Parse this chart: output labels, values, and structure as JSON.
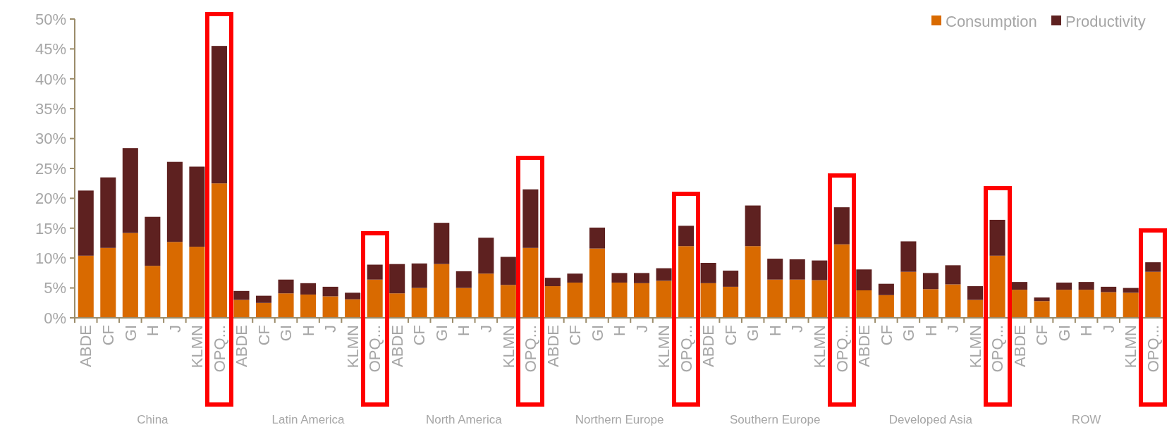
{
  "chart_data": {
    "type": "bar",
    "stacked": true,
    "categories": [
      "ABDE",
      "CF",
      "GI",
      "H",
      "J",
      "KLMN",
      "OPQ...",
      "ABDE",
      "CF",
      "GI",
      "H",
      "J",
      "KLMN",
      "OPQ...",
      "ABDE",
      "CF",
      "GI",
      "H",
      "J",
      "KLMN",
      "OPQ...",
      "ABDE",
      "CF",
      "GI",
      "H",
      "J",
      "KLMN",
      "OPQ...",
      "ABDE",
      "CF",
      "GI",
      "H",
      "J",
      "KLMN",
      "OPQ...",
      "ABDE",
      "CF",
      "GI",
      "H",
      "J",
      "KLMN",
      "OPQ...",
      "ABDE",
      "CF",
      "GI",
      "H",
      "J",
      "KLMN",
      "OPQ..."
    ],
    "series": [
      {
        "name": "Consumption",
        "color": "#d96a00",
        "values": [
          10.4,
          11.7,
          14.2,
          8.7,
          12.7,
          11.9,
          22.5,
          3.0,
          2.5,
          4.1,
          3.9,
          3.6,
          3.1,
          6.4,
          4.1,
          5.0,
          9.0,
          5.0,
          7.4,
          5.5,
          11.7,
          5.3,
          5.9,
          11.6,
          5.9,
          5.8,
          6.2,
          12.0,
          5.8,
          5.2,
          12.0,
          6.4,
          6.4,
          6.3,
          12.3,
          4.6,
          3.8,
          7.7,
          4.8,
          5.6,
          3.0,
          10.4,
          4.7,
          2.8,
          4.7,
          4.7,
          4.3,
          4.2,
          7.7
        ]
      },
      {
        "name": "Productivity",
        "color": "#5e2120",
        "values": [
          10.9,
          11.8,
          14.2,
          8.2,
          13.4,
          13.4,
          23.0,
          1.5,
          1.2,
          2.3,
          1.9,
          1.6,
          1.1,
          2.5,
          4.9,
          4.1,
          6.9,
          2.8,
          6.0,
          4.7,
          9.8,
          1.4,
          1.5,
          3.5,
          1.6,
          1.7,
          2.1,
          3.4,
          3.4,
          2.7,
          6.8,
          3.5,
          3.4,
          3.3,
          6.2,
          3.5,
          1.9,
          5.1,
          2.7,
          3.2,
          2.3,
          6.0,
          1.3,
          0.6,
          1.2,
          1.3,
          0.9,
          0.8,
          1.6
        ]
      }
    ],
    "ylim": [
      0,
      50
    ],
    "yticks": [
      {
        "value": 0,
        "label": "0%"
      },
      {
        "value": 5,
        "label": "5%"
      },
      {
        "value": 10,
        "label": "10%"
      },
      {
        "value": 15,
        "label": "15%"
      },
      {
        "value": 20,
        "label": "20%"
      },
      {
        "value": 25,
        "label": "25%"
      },
      {
        "value": 30,
        "label": "30%"
      },
      {
        "value": 35,
        "label": "35%"
      },
      {
        "value": 40,
        "label": "40%"
      },
      {
        "value": 45,
        "label": "45%"
      },
      {
        "value": 50,
        "label": "50%"
      }
    ],
    "annotations": [
      "China",
      "Latin America",
      "North America",
      "Northern Europe",
      "Southern Europe",
      "Developed Asia",
      "ROW"
    ],
    "legend": "top right",
    "grid": false
  }
}
